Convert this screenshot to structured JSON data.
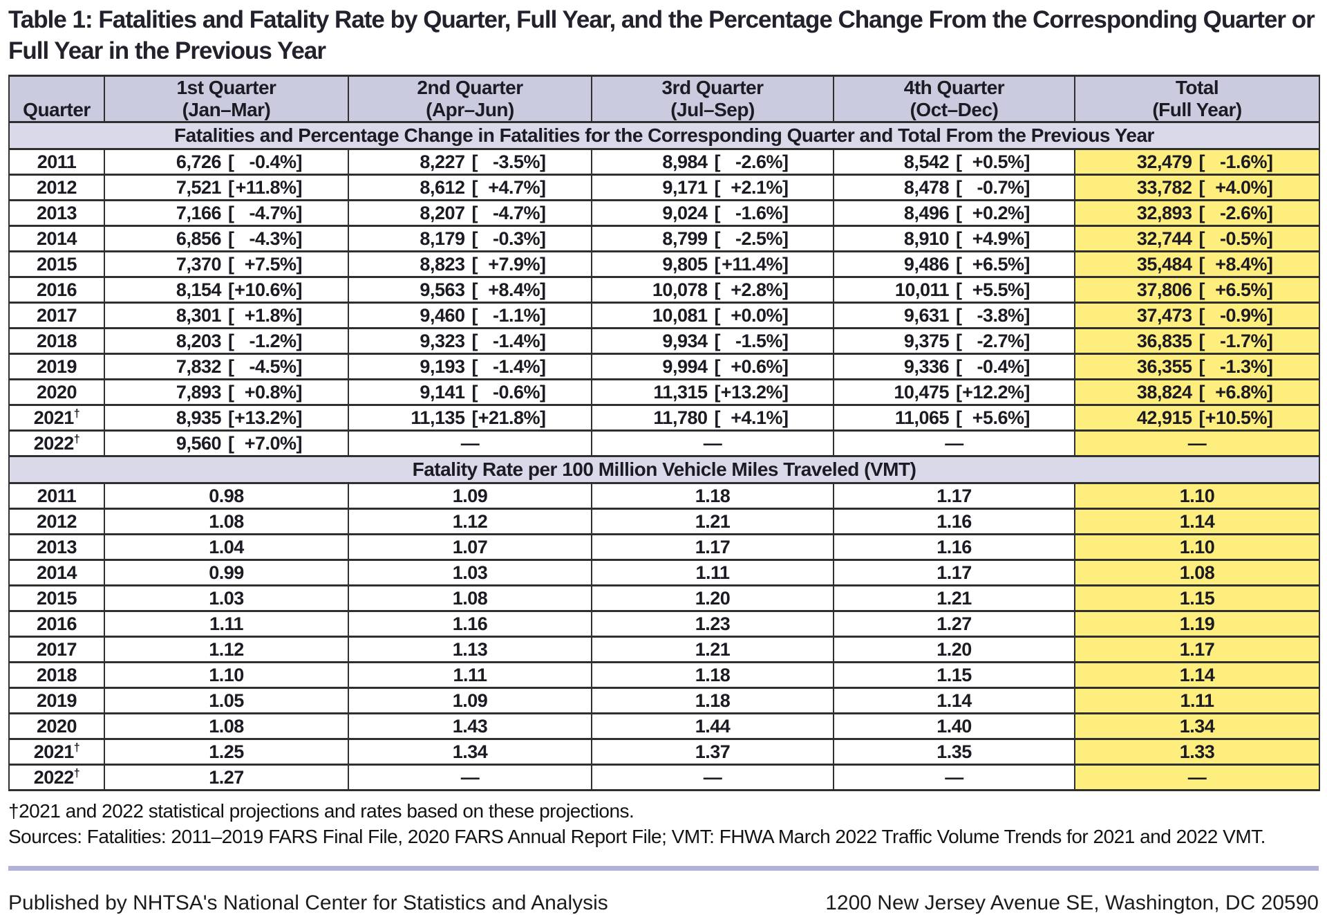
{
  "title": "Table 1: Fatalities and Fatality Rate by Quarter, Full Year, and the Percentage Change From the Corresponding Quarter or Full Year in the Previous Year",
  "colors": {
    "header_bg": "#cbcbdf",
    "band_bg": "#d9d9ea",
    "highlight_yellow": "#fdee7d",
    "rule_lavender": "#b2b2d8",
    "border": "#2f2f2f"
  },
  "table": {
    "dash": "—",
    "dagger": "†",
    "header": {
      "quarter_label": "Quarter",
      "columns": [
        {
          "line1": "1st Quarter",
          "line2": "(Jan–Mar)"
        },
        {
          "line1": "2nd Quarter",
          "line2": "(Apr–Jun)"
        },
        {
          "line1": "3rd Quarter",
          "line2": "(Jul–Sep)"
        },
        {
          "line1": "4th Quarter",
          "line2": "(Oct–Dec)"
        },
        {
          "line1": "Total",
          "line2": "(Full Year)"
        }
      ]
    },
    "sections": [
      {
        "band": "Fatalities and Percentage Change in Fatalities for the Corresponding Quarter and Total From the Previous Year",
        "type": "pair",
        "rows": [
          {
            "year": "2011",
            "dagger": false,
            "cells": [
              [
                "6,726",
                "-0.4%"
              ],
              [
                "8,227",
                "-3.5%"
              ],
              [
                "8,984",
                "-2.6%"
              ],
              [
                "8,542",
                "+0.5%"
              ],
              [
                "32,479",
                "-1.6%"
              ]
            ]
          },
          {
            "year": "2012",
            "dagger": false,
            "cells": [
              [
                "7,521",
                "+11.8%"
              ],
              [
                "8,612",
                "+4.7%"
              ],
              [
                "9,171",
                "+2.1%"
              ],
              [
                "8,478",
                "-0.7%"
              ],
              [
                "33,782",
                "+4.0%"
              ]
            ]
          },
          {
            "year": "2013",
            "dagger": false,
            "cells": [
              [
                "7,166",
                "-4.7%"
              ],
              [
                "8,207",
                "-4.7%"
              ],
              [
                "9,024",
                "-1.6%"
              ],
              [
                "8,496",
                "+0.2%"
              ],
              [
                "32,893",
                "-2.6%"
              ]
            ]
          },
          {
            "year": "2014",
            "dagger": false,
            "cells": [
              [
                "6,856",
                "-4.3%"
              ],
              [
                "8,179",
                "-0.3%"
              ],
              [
                "8,799",
                "-2.5%"
              ],
              [
                "8,910",
                "+4.9%"
              ],
              [
                "32,744",
                "-0.5%"
              ]
            ]
          },
          {
            "year": "2015",
            "dagger": false,
            "cells": [
              [
                "7,370",
                "+7.5%"
              ],
              [
                "8,823",
                "+7.9%"
              ],
              [
                "9,805",
                "+11.4%"
              ],
              [
                "9,486",
                "+6.5%"
              ],
              [
                "35,484",
                "+8.4%"
              ]
            ]
          },
          {
            "year": "2016",
            "dagger": false,
            "cells": [
              [
                "8,154",
                "+10.6%"
              ],
              [
                "9,563",
                "+8.4%"
              ],
              [
                "10,078",
                "+2.8%"
              ],
              [
                "10,011",
                "+5.5%"
              ],
              [
                "37,806",
                "+6.5%"
              ]
            ]
          },
          {
            "year": "2017",
            "dagger": false,
            "cells": [
              [
                "8,301",
                "+1.8%"
              ],
              [
                "9,460",
                "-1.1%"
              ],
              [
                "10,081",
                "+0.0%"
              ],
              [
                "9,631",
                "-3.8%"
              ],
              [
                "37,473",
                "-0.9%"
              ]
            ]
          },
          {
            "year": "2018",
            "dagger": false,
            "cells": [
              [
                "8,203",
                "-1.2%"
              ],
              [
                "9,323",
                "-1.4%"
              ],
              [
                "9,934",
                "-1.5%"
              ],
              [
                "9,375",
                "-2.7%"
              ],
              [
                "36,835",
                "-1.7%"
              ]
            ]
          },
          {
            "year": "2019",
            "dagger": false,
            "cells": [
              [
                "7,832",
                "-4.5%"
              ],
              [
                "9,193",
                "-1.4%"
              ],
              [
                "9,994",
                "+0.6%"
              ],
              [
                "9,336",
                "-0.4%"
              ],
              [
                "36,355",
                "-1.3%"
              ]
            ]
          },
          {
            "year": "2020",
            "dagger": false,
            "cells": [
              [
                "7,893",
                "+0.8%"
              ],
              [
                "9,141",
                "-0.6%"
              ],
              [
                "11,315",
                "+13.2%"
              ],
              [
                "10,475",
                "+12.2%"
              ],
              [
                "38,824",
                "+6.8%"
              ]
            ]
          },
          {
            "year": "2021",
            "dagger": true,
            "cells": [
              [
                "8,935",
                "+13.2%"
              ],
              [
                "11,135",
                "+21.8%"
              ],
              [
                "11,780",
                "+4.1%"
              ],
              [
                "11,065",
                "+5.6%"
              ],
              [
                "42,915",
                "+10.5%"
              ]
            ]
          },
          {
            "year": "2022",
            "dagger": true,
            "cells": [
              [
                "9,560",
                "+7.0%"
              ],
              null,
              null,
              null,
              null
            ]
          }
        ]
      },
      {
        "band": "Fatality Rate per 100 Million Vehicle Miles Traveled (VMT)",
        "type": "single",
        "rows": [
          {
            "year": "2011",
            "dagger": false,
            "cells": [
              "0.98",
              "1.09",
              "1.18",
              "1.17",
              "1.10"
            ]
          },
          {
            "year": "2012",
            "dagger": false,
            "cells": [
              "1.08",
              "1.12",
              "1.21",
              "1.16",
              "1.14"
            ]
          },
          {
            "year": "2013",
            "dagger": false,
            "cells": [
              "1.04",
              "1.07",
              "1.17",
              "1.16",
              "1.10"
            ]
          },
          {
            "year": "2014",
            "dagger": false,
            "cells": [
              "0.99",
              "1.03",
              "1.11",
              "1.17",
              "1.08"
            ]
          },
          {
            "year": "2015",
            "dagger": false,
            "cells": [
              "1.03",
              "1.08",
              "1.20",
              "1.21",
              "1.15"
            ]
          },
          {
            "year": "2016",
            "dagger": false,
            "cells": [
              "1.11",
              "1.16",
              "1.23",
              "1.27",
              "1.19"
            ]
          },
          {
            "year": "2017",
            "dagger": false,
            "cells": [
              "1.12",
              "1.13",
              "1.21",
              "1.20",
              "1.17"
            ]
          },
          {
            "year": "2018",
            "dagger": false,
            "cells": [
              "1.10",
              "1.11",
              "1.18",
              "1.15",
              "1.14"
            ]
          },
          {
            "year": "2019",
            "dagger": false,
            "cells": [
              "1.05",
              "1.09",
              "1.18",
              "1.14",
              "1.11"
            ]
          },
          {
            "year": "2020",
            "dagger": false,
            "cells": [
              "1.08",
              "1.43",
              "1.44",
              "1.40",
              "1.34"
            ]
          },
          {
            "year": "2021",
            "dagger": true,
            "cells": [
              "1.25",
              "1.34",
              "1.37",
              "1.35",
              "1.33"
            ]
          },
          {
            "year": "2022",
            "dagger": true,
            "cells": [
              "1.27",
              null,
              null,
              null,
              null
            ]
          }
        ]
      }
    ]
  },
  "footnotes": [
    "†2021 and 2022 statistical projections and rates based on these projections.",
    "Sources: Fatalities: 2011–2019 FARS Final File, 2020 FARS Annual Report File; VMT: FHWA March 2022 Traffic Volume Trends for 2021 and 2022 VMT."
  ],
  "footer": {
    "left": "Published by NHTSA's National Center for Statistics and Analysis",
    "right": "1200 New Jersey Avenue SE, Washington, DC 20590"
  }
}
